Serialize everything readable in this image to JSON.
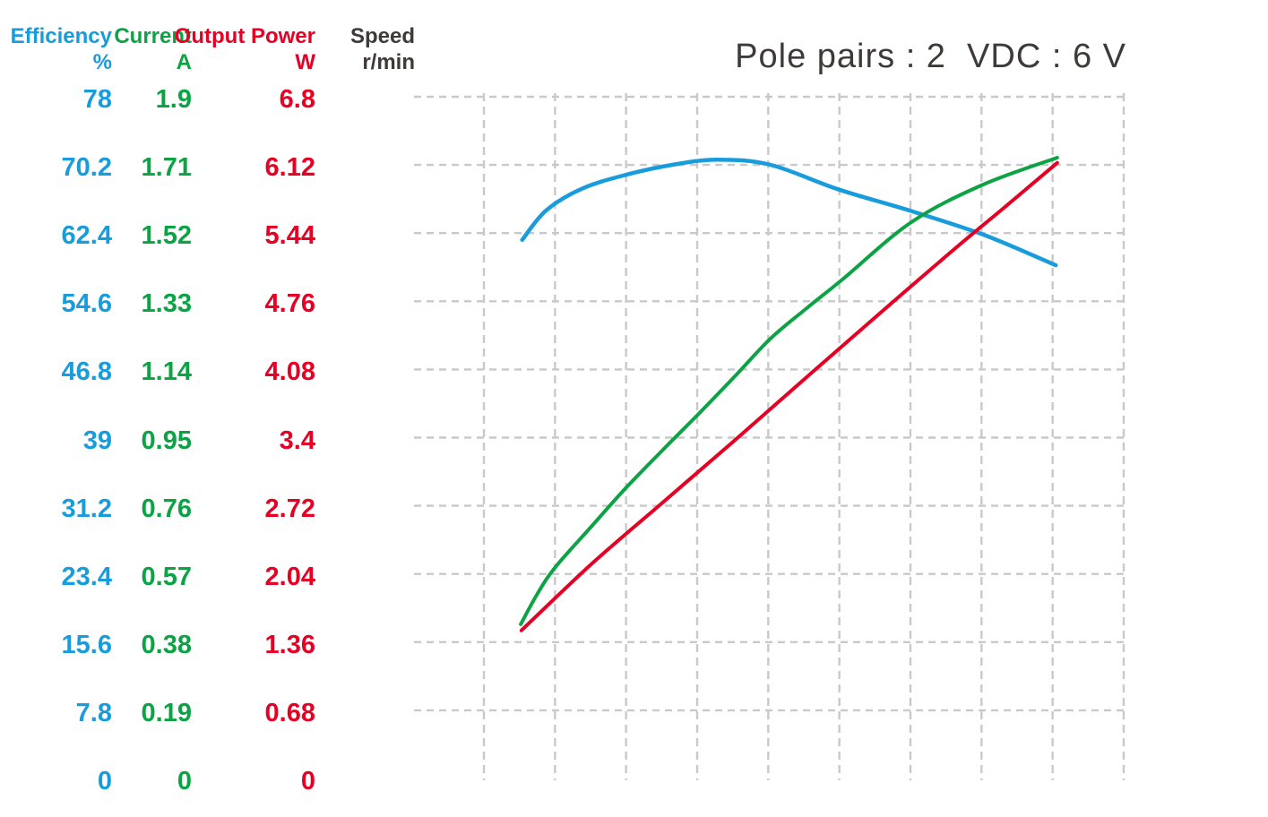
{
  "title": {
    "text": "Pole pairs : 2  VDC : 6 V",
    "color": "#3E3A39"
  },
  "axes": {
    "columns": [
      {
        "id": "efficiency",
        "name": "Efficiency",
        "unit": "%",
        "color": "#189CDC",
        "values": [
          "78",
          "70.2",
          "62.4",
          "54.6",
          "46.8",
          "39",
          "31.2",
          "23.4",
          "15.6",
          "7.8",
          "0"
        ]
      },
      {
        "id": "current",
        "name": "Current",
        "unit": "A",
        "color": "#0CA345",
        "values": [
          "1.9",
          "1.71",
          "1.52",
          "1.33",
          "1.14",
          "0.95",
          "0.76",
          "0.57",
          "0.38",
          "0.19",
          "0"
        ]
      },
      {
        "id": "output-power",
        "name": "Output Power",
        "unit": "W",
        "color": "#E60023",
        "values": [
          "6.8",
          "6.12",
          "5.44",
          "4.76",
          "4.08",
          "3.4",
          "2.72",
          "2.04",
          "1.36",
          "0.68",
          "0"
        ]
      },
      {
        "id": "speed",
        "name": "Speed",
        "unit": "r/min",
        "color": "#3E3A39",
        "values": []
      }
    ]
  },
  "chart_data": {
    "type": "line",
    "title": "Pole pairs : 2  VDC : 6 V",
    "grid": {
      "style": "dashed",
      "color": "#C8C9CA",
      "h_lines": 10,
      "v_lines": 10
    },
    "x_axis": {
      "label": "Speed",
      "unit": "r/min",
      "tick_labels": [],
      "range_frac": [
        0,
        1
      ]
    },
    "y_axes": [
      {
        "name": "Efficiency",
        "unit": "%",
        "min": 0,
        "max": 78,
        "color": "#189CDC"
      },
      {
        "name": "Current",
        "unit": "A",
        "min": 0,
        "max": 1.9,
        "color": "#0CA345"
      },
      {
        "name": "Output Power",
        "unit": "W",
        "min": 0,
        "max": 6.8,
        "color": "#E60023"
      }
    ],
    "series": [
      {
        "name": "Efficiency",
        "unit": "%",
        "color": "#189CDC",
        "axis_max": 78,
        "stroke_width": 4.5,
        "points": [
          [
            0.152,
            61.6
          ],
          [
            0.186,
            65.0
          ],
          [
            0.237,
            67.5
          ],
          [
            0.3,
            69.1
          ],
          [
            0.363,
            70.2
          ],
          [
            0.426,
            70.8
          ],
          [
            0.501,
            70.2
          ],
          [
            0.596,
            67.4
          ],
          [
            0.699,
            64.9
          ],
          [
            0.8,
            62.2
          ],
          [
            0.902,
            58.7
          ]
        ]
      },
      {
        "name": "Current",
        "unit": "A",
        "color": "#0CA345",
        "axis_max": 1.9,
        "stroke_width": 4,
        "points": [
          [
            0.15,
            0.428
          ],
          [
            0.174,
            0.515
          ],
          [
            0.199,
            0.588
          ],
          [
            0.249,
            0.7
          ],
          [
            0.3,
            0.813
          ],
          [
            0.35,
            0.915
          ],
          [
            0.4,
            1.015
          ],
          [
            0.451,
            1.12
          ],
          [
            0.501,
            1.225
          ],
          [
            0.552,
            1.31
          ],
          [
            0.602,
            1.39
          ],
          [
            0.699,
            1.55
          ],
          [
            0.8,
            1.655
          ],
          [
            0.904,
            1.73
          ]
        ]
      },
      {
        "name": "Output Power",
        "unit": "W",
        "color": "#E60023",
        "axis_max": 6.8,
        "stroke_width": 4,
        "points": [
          [
            0.151,
            1.47
          ],
          [
            0.249,
            2.13
          ],
          [
            0.35,
            2.75
          ],
          [
            0.451,
            3.37
          ],
          [
            0.552,
            4.0
          ],
          [
            0.652,
            4.62
          ],
          [
            0.753,
            5.24
          ],
          [
            0.829,
            5.69
          ],
          [
            0.904,
            6.14
          ]
        ]
      }
    ]
  }
}
